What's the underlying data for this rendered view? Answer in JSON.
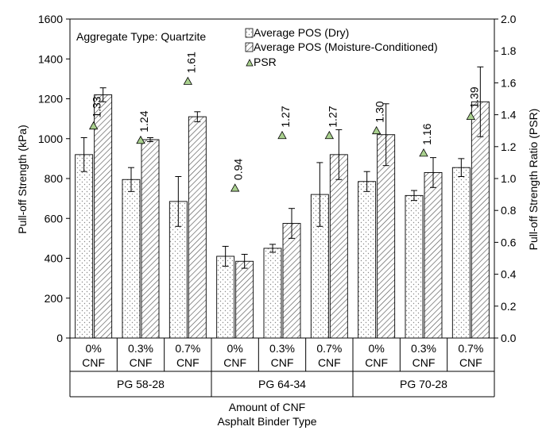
{
  "chart_data": {
    "type": "bar",
    "annotation": "Aggregate Type:  Quartzite",
    "ylabel_left": "Pull-off  Strength (kPa)",
    "ylabel_right": "Pull-off  Strength Ratio (PSR)",
    "xlabel_lines": [
      "Amount of CNF",
      "Asphalt Binder Type"
    ],
    "ylim_left": [
      0,
      1600
    ],
    "yticks_left": [
      "0",
      "200",
      "400",
      "600",
      "800",
      "1000",
      "1200",
      "1400",
      "1600"
    ],
    "ylim_right": [
      0,
      2.0
    ],
    "yticks_right": [
      "0.0",
      "0.2",
      "0.4",
      "0.6",
      "0.8",
      "1.0",
      "1.2",
      "1.4",
      "1.6",
      "1.8",
      "2.0"
    ],
    "groups": [
      {
        "label": "PG 58-28",
        "categories": [
          [
            "0%",
            "CNF"
          ],
          [
            "0.3%",
            "CNF"
          ],
          [
            "0.7%",
            "CNF"
          ]
        ]
      },
      {
        "label": "PG 64-34",
        "categories": [
          [
            "0%",
            "CNF"
          ],
          [
            "0.3%",
            "CNF"
          ],
          [
            "0.7%",
            "CNF"
          ]
        ]
      },
      {
        "label": "PG 70-28",
        "categories": [
          [
            "0%",
            "CNF"
          ],
          [
            "0.3%",
            "CNF"
          ],
          [
            "0.7%",
            "CNF"
          ]
        ]
      }
    ],
    "series": [
      {
        "name": "Average POS (Dry)",
        "pattern": "dots",
        "values": [
          920,
          795,
          685,
          410,
          450,
          720,
          785,
          715,
          855
        ],
        "errors": [
          85,
          60,
          125,
          50,
          20,
          160,
          50,
          25,
          45
        ]
      },
      {
        "name": "Average POS (Moisture-Conditioned)",
        "pattern": "hatch",
        "values": [
          1220,
          995,
          1110,
          385,
          575,
          920,
          1020,
          830,
          1185
        ],
        "errors": [
          35,
          10,
          25,
          35,
          75,
          125,
          155,
          75,
          175
        ]
      },
      {
        "name": "PSR",
        "marker": "triangle",
        "color": "#a9d08e",
        "values": [
          1.33,
          1.24,
          1.61,
          0.94,
          1.27,
          1.27,
          1.3,
          1.16,
          1.39
        ],
        "labels": [
          "1.33",
          "1.24",
          "1.61",
          "0.94",
          "1.27",
          "1.27",
          "1.30",
          "1.16",
          "1.39"
        ]
      }
    ],
    "legend_position": "top-right",
    "grid": false
  }
}
